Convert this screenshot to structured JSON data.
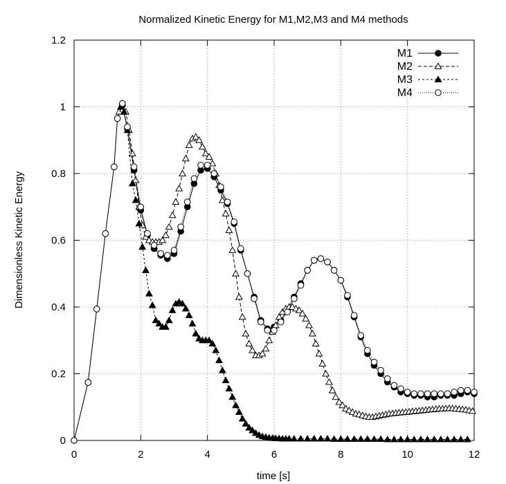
{
  "chart_data": {
    "type": "line",
    "title": "Normalized Kinetic Energy for M1,M2,M3 and M4 methods",
    "xlabel": "time [s]",
    "ylabel": "Dimensionless Kinetic Energy",
    "xlim": [
      0,
      12
    ],
    "ylim": [
      0,
      1.2
    ],
    "grid": true,
    "legend_position": "top-right",
    "x_ticks": [
      0,
      2,
      4,
      6,
      8,
      10,
      12
    ],
    "x_tick_labels": [
      "0",
      "2",
      "4",
      "6",
      "8",
      "10",
      "12"
    ],
    "y_ticks": [
      0,
      0.2,
      0.4,
      0.6,
      0.8,
      1.0,
      1.2
    ],
    "y_tick_labels": [
      "0",
      "0.2",
      "0.4",
      "0.6",
      "0.8",
      "1",
      "1.2"
    ],
    "series": [
      {
        "name": "M1",
        "marker": "filled-circle",
        "line": "solid",
        "marker_every": 1,
        "x": [
          0,
          0.42,
          0.68,
          0.94,
          1.2,
          1.3,
          1.45,
          1.6,
          1.8,
          2.0,
          2.2,
          2.4,
          2.6,
          2.8,
          3.0,
          3.2,
          3.4,
          3.6,
          3.8,
          4.0,
          4.2,
          4.4,
          4.6,
          4.8,
          5.0,
          5.2,
          5.4,
          5.6,
          5.8,
          6.0,
          6.2,
          6.4,
          6.6,
          6.8,
          7.0,
          7.2,
          7.4,
          7.6,
          7.8,
          8.0,
          8.2,
          8.4,
          8.6,
          8.8,
          9.0,
          9.2,
          9.4,
          9.6,
          9.8,
          10.0,
          10.2,
          10.4,
          10.6,
          10.8,
          11.0,
          11.2,
          11.4,
          11.6,
          11.8,
          12.0
        ],
        "y": [
          0.0,
          0.174,
          0.394,
          0.62,
          0.82,
          0.965,
          1.005,
          0.935,
          0.81,
          0.69,
          0.615,
          0.575,
          0.555,
          0.545,
          0.56,
          0.627,
          0.7,
          0.77,
          0.81,
          0.815,
          0.79,
          0.75,
          0.71,
          0.65,
          0.57,
          0.5,
          0.43,
          0.36,
          0.335,
          0.34,
          0.36,
          0.39,
          0.43,
          0.47,
          0.51,
          0.54,
          0.545,
          0.535,
          0.51,
          0.48,
          0.43,
          0.37,
          0.31,
          0.26,
          0.225,
          0.2,
          0.175,
          0.16,
          0.145,
          0.14,
          0.135,
          0.135,
          0.13,
          0.13,
          0.135,
          0.135,
          0.135,
          0.14,
          0.145,
          0.14
        ]
      },
      {
        "name": "M2",
        "marker": "open-triangle",
        "line": "dashed",
        "marker_every": 1,
        "x": [
          1.35,
          1.45,
          1.55,
          1.65,
          1.75,
          1.85,
          1.95,
          2.05,
          2.15,
          2.25,
          2.35,
          2.45,
          2.55,
          2.65,
          2.75,
          2.85,
          2.95,
          3.05,
          3.15,
          3.25,
          3.35,
          3.45,
          3.55,
          3.65,
          3.75,
          3.85,
          3.95,
          4.05,
          4.15,
          4.25,
          4.35,
          4.45,
          4.55,
          4.65,
          4.75,
          4.85,
          4.95,
          5.05,
          5.15,
          5.25,
          5.35,
          5.45,
          5.55,
          5.65,
          5.75,
          5.85,
          5.95,
          6.05,
          6.15,
          6.25,
          6.35,
          6.45,
          6.55,
          6.65,
          6.75,
          6.85,
          6.95,
          7.05,
          7.15,
          7.25,
          7.35,
          7.45,
          7.55,
          7.65,
          7.75,
          7.85,
          7.95,
          8.05,
          8.15,
          8.25,
          8.35,
          8.45,
          8.55,
          8.65,
          8.75,
          8.85,
          8.95,
          9.05,
          9.15,
          9.25,
          9.35,
          9.45,
          9.55,
          9.65,
          9.75,
          9.85,
          9.95,
          10.05,
          10.15,
          10.25,
          10.35,
          10.45,
          10.55,
          10.65,
          10.75,
          10.85,
          10.95,
          11.05,
          11.15,
          11.25,
          11.35,
          11.45,
          11.55,
          11.65,
          11.75,
          11.85,
          11.95
        ],
        "y": [
          0.985,
          1.01,
          0.985,
          0.93,
          0.86,
          0.78,
          0.7,
          0.645,
          0.61,
          0.6,
          0.595,
          0.595,
          0.595,
          0.6,
          0.615,
          0.64,
          0.675,
          0.715,
          0.755,
          0.8,
          0.845,
          0.885,
          0.905,
          0.91,
          0.9,
          0.88,
          0.86,
          0.85,
          0.83,
          0.8,
          0.765,
          0.72,
          0.68,
          0.63,
          0.57,
          0.5,
          0.43,
          0.37,
          0.32,
          0.29,
          0.27,
          0.255,
          0.255,
          0.26,
          0.275,
          0.3,
          0.325,
          0.345,
          0.37,
          0.385,
          0.395,
          0.4,
          0.4,
          0.395,
          0.39,
          0.38,
          0.365,
          0.345,
          0.32,
          0.29,
          0.26,
          0.23,
          0.2,
          0.175,
          0.15,
          0.13,
          0.115,
          0.105,
          0.095,
          0.09,
          0.085,
          0.08,
          0.078,
          0.075,
          0.072,
          0.07,
          0.07,
          0.072,
          0.074,
          0.076,
          0.078,
          0.08,
          0.081,
          0.082,
          0.083,
          0.084,
          0.085,
          0.086,
          0.087,
          0.088,
          0.089,
          0.09,
          0.091,
          0.092,
          0.093,
          0.094,
          0.095,
          0.095,
          0.096,
          0.096,
          0.096,
          0.095,
          0.094,
          0.093,
          0.092,
          0.09,
          0.088
        ],
        "label_marker_every": 1
      },
      {
        "name": "M3",
        "marker": "filled-triangle",
        "line": "short-dashed",
        "marker_every": 1,
        "x": [
          1.4,
          1.5,
          1.6,
          1.75,
          1.85,
          1.95,
          2.05,
          2.15,
          2.25,
          2.35,
          2.45,
          2.55,
          2.65,
          2.75,
          2.85,
          2.95,
          3.05,
          3.15,
          3.25,
          3.35,
          3.45,
          3.55,
          3.65,
          3.75,
          3.85,
          3.95,
          4.05,
          4.15,
          4.25,
          4.35,
          4.45,
          4.55,
          4.65,
          4.75,
          4.85,
          4.95,
          5.05,
          5.15,
          5.25,
          5.35,
          5.45,
          5.55,
          5.65,
          5.75,
          5.85,
          5.95,
          6.05,
          6.15,
          6.25,
          6.35,
          6.45,
          6.6,
          6.8,
          7.0,
          7.2,
          7.4,
          7.6,
          7.8,
          8.0,
          8.2,
          8.4,
          8.6,
          8.8,
          9.0,
          9.2,
          9.4,
          9.6,
          9.8,
          10.0,
          10.2,
          10.4,
          10.6,
          10.8,
          11.0,
          11.2,
          11.4,
          11.6,
          11.8
        ],
        "y": [
          1.0,
          0.985,
          0.93,
          0.77,
          0.72,
          0.65,
          0.58,
          0.51,
          0.44,
          0.405,
          0.36,
          0.35,
          0.34,
          0.34,
          0.36,
          0.39,
          0.41,
          0.415,
          0.41,
          0.395,
          0.375,
          0.35,
          0.32,
          0.305,
          0.3,
          0.3,
          0.3,
          0.29,
          0.27,
          0.24,
          0.21,
          0.18,
          0.155,
          0.13,
          0.105,
          0.085,
          0.065,
          0.05,
          0.038,
          0.03,
          0.022,
          0.016,
          0.012,
          0.01,
          0.008,
          0.007,
          0.006,
          0.006,
          0.005,
          0.005,
          0.005,
          0.005,
          0.005,
          0.005,
          0.005,
          0.005,
          0.005,
          0.004,
          0.004,
          0.004,
          0.004,
          0.004,
          0.004,
          0.004,
          0.004,
          0.003,
          0.003,
          0.003,
          0.003,
          0.003,
          0.003,
          0.003,
          0.003,
          0.003,
          0.003,
          0.003,
          0.003,
          0.003
        ]
      },
      {
        "name": "M4",
        "marker": "open-circle",
        "line": "dotted",
        "marker_every": 1,
        "x": [
          0,
          0.42,
          0.68,
          0.94,
          1.2,
          1.3,
          1.45,
          1.6,
          1.8,
          2.0,
          2.2,
          2.4,
          2.6,
          2.8,
          3.0,
          3.2,
          3.4,
          3.6,
          3.8,
          4.0,
          4.2,
          4.4,
          4.6,
          4.8,
          5.0,
          5.2,
          5.4,
          5.6,
          5.8,
          6.0,
          6.2,
          6.4,
          6.6,
          6.8,
          7.0,
          7.2,
          7.4,
          7.6,
          7.8,
          8.0,
          8.2,
          8.4,
          8.6,
          8.8,
          9.0,
          9.2,
          9.4,
          9.6,
          9.8,
          10.0,
          10.2,
          10.4,
          10.6,
          10.8,
          11.0,
          11.2,
          11.4,
          11.6,
          11.8,
          12.0
        ],
        "y": [
          0.0,
          0.174,
          0.394,
          0.62,
          0.82,
          0.965,
          1.01,
          0.94,
          0.82,
          0.7,
          0.62,
          0.585,
          0.56,
          0.555,
          0.57,
          0.64,
          0.715,
          0.785,
          0.825,
          0.825,
          0.8,
          0.76,
          0.715,
          0.655,
          0.575,
          0.5,
          0.425,
          0.355,
          0.33,
          0.33,
          0.355,
          0.385,
          0.425,
          0.465,
          0.51,
          0.54,
          0.545,
          0.535,
          0.51,
          0.48,
          0.435,
          0.375,
          0.315,
          0.27,
          0.235,
          0.21,
          0.185,
          0.165,
          0.155,
          0.145,
          0.14,
          0.14,
          0.14,
          0.14,
          0.14,
          0.14,
          0.145,
          0.15,
          0.15,
          0.145
        ]
      }
    ]
  }
}
